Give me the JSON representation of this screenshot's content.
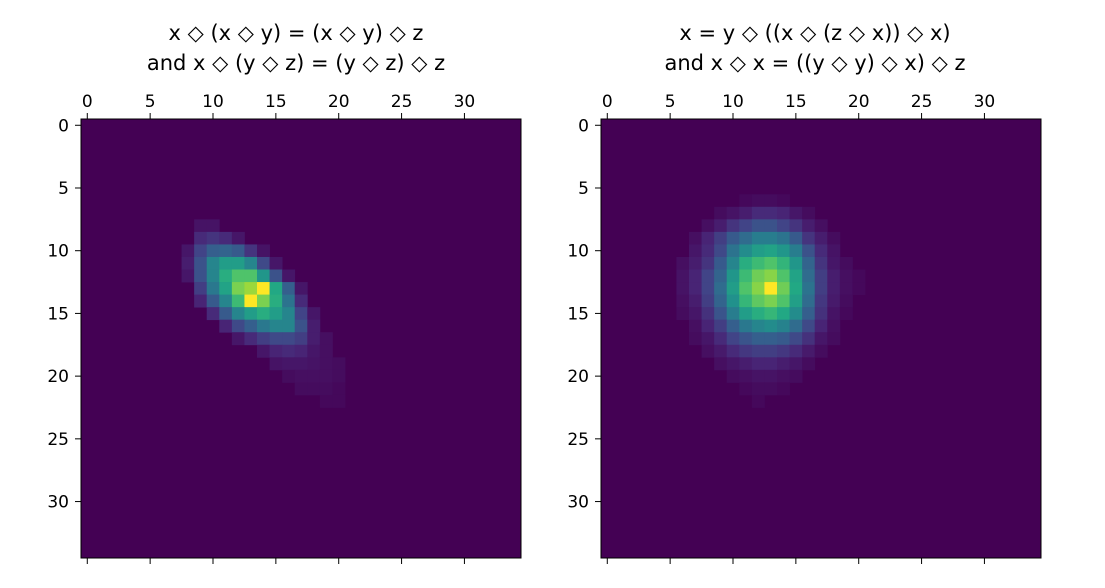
{
  "chart_data": [
    {
      "type": "heatmap",
      "title_lines": [
        "x ◇ (x ◇ y) = (x ◇ y) ◇ z",
        "and x ◇ (y ◇ z) = (y ◇ z) ◇ z"
      ],
      "xlabel": "",
      "ylabel": "",
      "x_ticks": [
        0,
        5,
        10,
        15,
        20,
        25,
        30
      ],
      "y_ticks": [
        0,
        5,
        10,
        15,
        20,
        25,
        30
      ],
      "xlim": [
        -0.5,
        34.5
      ],
      "ylim": [
        34.5,
        -0.5
      ],
      "x_axis_position": "top",
      "grid": false,
      "colormap": "viridis",
      "value_range": [
        0,
        1
      ],
      "shape": [
        35,
        35
      ],
      "cells": [
        [
          8,
          9,
          0.05
        ],
        [
          8,
          10,
          0.05
        ],
        [
          9,
          9,
          0.12
        ],
        [
          9,
          10,
          0.15
        ],
        [
          9,
          11,
          0.12
        ],
        [
          9,
          12,
          0.06
        ],
        [
          10,
          8,
          0.06
        ],
        [
          10,
          9,
          0.2
        ],
        [
          10,
          10,
          0.3
        ],
        [
          10,
          11,
          0.32
        ],
        [
          10,
          12,
          0.28
        ],
        [
          10,
          13,
          0.15
        ],
        [
          10,
          14,
          0.05
        ],
        [
          11,
          8,
          0.08
        ],
        [
          11,
          9,
          0.25
        ],
        [
          11,
          10,
          0.45
        ],
        [
          11,
          11,
          0.55
        ],
        [
          11,
          12,
          0.55
        ],
        [
          11,
          13,
          0.45
        ],
        [
          11,
          14,
          0.22
        ],
        [
          11,
          15,
          0.06
        ],
        [
          12,
          8,
          0.06
        ],
        [
          12,
          9,
          0.25
        ],
        [
          12,
          10,
          0.45
        ],
        [
          12,
          11,
          0.62
        ],
        [
          12,
          12,
          0.72
        ],
        [
          12,
          13,
          0.72
        ],
        [
          12,
          14,
          0.52
        ],
        [
          12,
          15,
          0.25
        ],
        [
          12,
          16,
          0.06
        ],
        [
          13,
          9,
          0.18
        ],
        [
          13,
          10,
          0.4
        ],
        [
          13,
          11,
          0.58
        ],
        [
          13,
          12,
          0.8
        ],
        [
          13,
          13,
          0.85
        ],
        [
          13,
          14,
          1.0
        ],
        [
          13,
          15,
          0.6
        ],
        [
          13,
          16,
          0.3
        ],
        [
          13,
          17,
          0.06
        ],
        [
          14,
          9,
          0.1
        ],
        [
          14,
          10,
          0.28
        ],
        [
          14,
          11,
          0.45
        ],
        [
          14,
          12,
          0.68
        ],
        [
          14,
          13,
          1.0
        ],
        [
          14,
          14,
          0.8
        ],
        [
          14,
          15,
          0.62
        ],
        [
          14,
          16,
          0.38
        ],
        [
          14,
          17,
          0.12
        ],
        [
          15,
          10,
          0.12
        ],
        [
          15,
          11,
          0.28
        ],
        [
          15,
          12,
          0.45
        ],
        [
          15,
          13,
          0.55
        ],
        [
          15,
          14,
          0.62
        ],
        [
          15,
          15,
          0.55
        ],
        [
          15,
          16,
          0.45
        ],
        [
          15,
          17,
          0.2
        ],
        [
          15,
          18,
          0.06
        ],
        [
          16,
          11,
          0.1
        ],
        [
          16,
          12,
          0.22
        ],
        [
          16,
          13,
          0.3
        ],
        [
          16,
          14,
          0.4
        ],
        [
          16,
          15,
          0.45
        ],
        [
          16,
          16,
          0.45
        ],
        [
          16,
          17,
          0.25
        ],
        [
          16,
          18,
          0.08
        ],
        [
          17,
          12,
          0.06
        ],
        [
          17,
          13,
          0.12
        ],
        [
          17,
          14,
          0.18
        ],
        [
          17,
          15,
          0.22
        ],
        [
          17,
          16,
          0.22
        ],
        [
          17,
          17,
          0.18
        ],
        [
          17,
          18,
          0.08
        ],
        [
          17,
          19,
          0.04
        ],
        [
          18,
          14,
          0.06
        ],
        [
          18,
          15,
          0.1
        ],
        [
          18,
          16,
          0.12
        ],
        [
          18,
          17,
          0.1
        ],
        [
          18,
          18,
          0.06
        ],
        [
          18,
          19,
          0.04
        ],
        [
          19,
          15,
          0.05
        ],
        [
          19,
          16,
          0.06
        ],
        [
          19,
          17,
          0.06
        ],
        [
          19,
          18,
          0.05
        ],
        [
          19,
          19,
          0.04
        ],
        [
          19,
          20,
          0.03
        ],
        [
          20,
          16,
          0.03
        ],
        [
          20,
          17,
          0.04
        ],
        [
          20,
          18,
          0.04
        ],
        [
          20,
          19,
          0.04
        ],
        [
          20,
          20,
          0.03
        ],
        [
          21,
          17,
          0.03
        ],
        [
          21,
          18,
          0.03
        ],
        [
          21,
          19,
          0.03
        ],
        [
          21,
          20,
          0.02
        ],
        [
          22,
          19,
          0.02
        ],
        [
          22,
          20,
          0.02
        ]
      ]
    },
    {
      "type": "heatmap",
      "title_lines": [
        "x = y ◇ ((x ◇ (z ◇ x)) ◇ x)",
        "and x ◇ x = ((y ◇ y) ◇ x) ◇ z"
      ],
      "xlabel": "",
      "ylabel": "",
      "x_ticks": [
        0,
        5,
        10,
        15,
        20,
        25,
        30
      ],
      "y_ticks": [
        0,
        5,
        10,
        15,
        20,
        25,
        30
      ],
      "xlim": [
        -0.5,
        34.5
      ],
      "ylim": [
        34.5,
        -0.5
      ],
      "x_axis_position": "top",
      "grid": false,
      "colormap": "viridis",
      "value_range": [
        0,
        1
      ],
      "shape": [
        35,
        35
      ],
      "cells": [
        [
          6,
          11,
          0.02
        ],
        [
          6,
          12,
          0.03
        ],
        [
          6,
          13,
          0.03
        ],
        [
          6,
          14,
          0.02
        ],
        [
          7,
          9,
          0.03
        ],
        [
          7,
          10,
          0.05
        ],
        [
          7,
          11,
          0.08
        ],
        [
          7,
          12,
          0.12
        ],
        [
          7,
          13,
          0.12
        ],
        [
          7,
          14,
          0.1
        ],
        [
          7,
          15,
          0.06
        ],
        [
          7,
          16,
          0.03
        ],
        [
          8,
          8,
          0.04
        ],
        [
          8,
          9,
          0.08
        ],
        [
          8,
          10,
          0.15
        ],
        [
          8,
          11,
          0.2
        ],
        [
          8,
          12,
          0.25
        ],
        [
          8,
          13,
          0.25
        ],
        [
          8,
          14,
          0.2
        ],
        [
          8,
          15,
          0.15
        ],
        [
          8,
          16,
          0.08
        ],
        [
          8,
          17,
          0.04
        ],
        [
          9,
          7,
          0.04
        ],
        [
          9,
          8,
          0.1
        ],
        [
          9,
          9,
          0.18
        ],
        [
          9,
          10,
          0.28
        ],
        [
          9,
          11,
          0.35
        ],
        [
          9,
          12,
          0.42
        ],
        [
          9,
          13,
          0.42
        ],
        [
          9,
          14,
          0.38
        ],
        [
          9,
          15,
          0.28
        ],
        [
          9,
          16,
          0.15
        ],
        [
          9,
          17,
          0.08
        ],
        [
          9,
          18,
          0.03
        ],
        [
          10,
          7,
          0.06
        ],
        [
          10,
          8,
          0.12
        ],
        [
          10,
          9,
          0.22
        ],
        [
          10,
          10,
          0.38
        ],
        [
          10,
          11,
          0.48
        ],
        [
          10,
          12,
          0.55
        ],
        [
          10,
          13,
          0.58
        ],
        [
          10,
          14,
          0.52
        ],
        [
          10,
          15,
          0.42
        ],
        [
          10,
          16,
          0.25
        ],
        [
          10,
          17,
          0.12
        ],
        [
          10,
          18,
          0.05
        ],
        [
          11,
          6,
          0.04
        ],
        [
          11,
          7,
          0.08
        ],
        [
          11,
          8,
          0.15
        ],
        [
          11,
          9,
          0.28
        ],
        [
          11,
          10,
          0.45
        ],
        [
          11,
          11,
          0.62
        ],
        [
          11,
          12,
          0.68
        ],
        [
          11,
          13,
          0.72
        ],
        [
          11,
          14,
          0.65
        ],
        [
          11,
          15,
          0.52
        ],
        [
          11,
          16,
          0.32
        ],
        [
          11,
          17,
          0.15
        ],
        [
          11,
          18,
          0.06
        ],
        [
          11,
          19,
          0.03
        ],
        [
          12,
          6,
          0.05
        ],
        [
          12,
          7,
          0.1
        ],
        [
          12,
          8,
          0.2
        ],
        [
          12,
          9,
          0.32
        ],
        [
          12,
          10,
          0.52
        ],
        [
          12,
          11,
          0.68
        ],
        [
          12,
          12,
          0.78
        ],
        [
          12,
          13,
          0.82
        ],
        [
          12,
          14,
          0.72
        ],
        [
          12,
          15,
          0.58
        ],
        [
          12,
          16,
          0.35
        ],
        [
          12,
          17,
          0.18
        ],
        [
          12,
          18,
          0.08
        ],
        [
          12,
          19,
          0.04
        ],
        [
          12,
          20,
          0.02
        ],
        [
          13,
          6,
          0.05
        ],
        [
          13,
          7,
          0.1
        ],
        [
          13,
          8,
          0.2
        ],
        [
          13,
          9,
          0.35
        ],
        [
          13,
          10,
          0.55
        ],
        [
          13,
          11,
          0.72
        ],
        [
          13,
          12,
          0.82
        ],
        [
          13,
          13,
          1.0
        ],
        [
          13,
          14,
          0.78
        ],
        [
          13,
          15,
          0.6
        ],
        [
          13,
          16,
          0.38
        ],
        [
          13,
          17,
          0.18
        ],
        [
          13,
          18,
          0.08
        ],
        [
          13,
          19,
          0.04
        ],
        [
          13,
          20,
          0.02
        ],
        [
          14,
          6,
          0.04
        ],
        [
          14,
          7,
          0.08
        ],
        [
          14,
          8,
          0.18
        ],
        [
          14,
          9,
          0.32
        ],
        [
          14,
          10,
          0.5
        ],
        [
          14,
          11,
          0.66
        ],
        [
          14,
          12,
          0.75
        ],
        [
          14,
          13,
          0.8
        ],
        [
          14,
          14,
          0.72
        ],
        [
          14,
          15,
          0.56
        ],
        [
          14,
          16,
          0.35
        ],
        [
          14,
          17,
          0.16
        ],
        [
          14,
          18,
          0.07
        ],
        [
          14,
          19,
          0.03
        ],
        [
          15,
          6,
          0.03
        ],
        [
          15,
          7,
          0.06
        ],
        [
          15,
          8,
          0.14
        ],
        [
          15,
          9,
          0.26
        ],
        [
          15,
          10,
          0.42
        ],
        [
          15,
          11,
          0.55
        ],
        [
          15,
          12,
          0.62
        ],
        [
          15,
          13,
          0.66
        ],
        [
          15,
          14,
          0.6
        ],
        [
          15,
          15,
          0.48
        ],
        [
          15,
          16,
          0.3
        ],
        [
          15,
          17,
          0.14
        ],
        [
          15,
          18,
          0.05
        ],
        [
          15,
          19,
          0.02
        ],
        [
          16,
          7,
          0.04
        ],
        [
          16,
          8,
          0.1
        ],
        [
          16,
          9,
          0.18
        ],
        [
          16,
          10,
          0.3
        ],
        [
          16,
          11,
          0.4
        ],
        [
          16,
          12,
          0.45
        ],
        [
          16,
          13,
          0.48
        ],
        [
          16,
          14,
          0.44
        ],
        [
          16,
          15,
          0.35
        ],
        [
          16,
          16,
          0.22
        ],
        [
          16,
          17,
          0.1
        ],
        [
          16,
          18,
          0.04
        ],
        [
          17,
          7,
          0.03
        ],
        [
          17,
          8,
          0.06
        ],
        [
          17,
          9,
          0.12
        ],
        [
          17,
          10,
          0.2
        ],
        [
          17,
          11,
          0.26
        ],
        [
          17,
          12,
          0.3
        ],
        [
          17,
          13,
          0.3
        ],
        [
          17,
          14,
          0.28
        ],
        [
          17,
          15,
          0.22
        ],
        [
          17,
          16,
          0.14
        ],
        [
          17,
          17,
          0.06
        ],
        [
          17,
          18,
          0.03
        ],
        [
          18,
          8,
          0.04
        ],
        [
          18,
          9,
          0.07
        ],
        [
          18,
          10,
          0.12
        ],
        [
          18,
          11,
          0.16
        ],
        [
          18,
          12,
          0.18
        ],
        [
          18,
          13,
          0.18
        ],
        [
          18,
          14,
          0.16
        ],
        [
          18,
          15,
          0.12
        ],
        [
          18,
          16,
          0.07
        ],
        [
          18,
          17,
          0.03
        ],
        [
          19,
          9,
          0.04
        ],
        [
          19,
          10,
          0.06
        ],
        [
          19,
          11,
          0.08
        ],
        [
          19,
          12,
          0.1
        ],
        [
          19,
          13,
          0.1
        ],
        [
          19,
          14,
          0.08
        ],
        [
          19,
          15,
          0.06
        ],
        [
          19,
          16,
          0.03
        ],
        [
          20,
          10,
          0.03
        ],
        [
          20,
          11,
          0.04
        ],
        [
          20,
          12,
          0.05
        ],
        [
          20,
          13,
          0.05
        ],
        [
          20,
          14,
          0.04
        ],
        [
          20,
          15,
          0.03
        ],
        [
          21,
          11,
          0.02
        ],
        [
          21,
          12,
          0.03
        ],
        [
          21,
          13,
          0.03
        ],
        [
          21,
          14,
          0.02
        ],
        [
          22,
          12,
          0.02
        ]
      ]
    }
  ]
}
